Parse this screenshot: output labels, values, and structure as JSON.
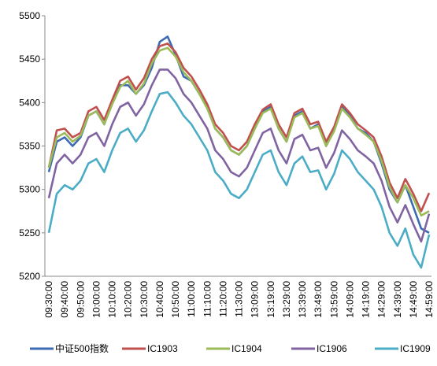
{
  "chart_data": {
    "type": "line",
    "categories": [
      "09:30:00",
      null,
      "09:40:00",
      null,
      "09:50:00",
      null,
      "10:00:00",
      null,
      "10:10:00",
      null,
      "10:20:00",
      null,
      "10:30:00",
      null,
      "10:40:00",
      null,
      "10:50:00",
      null,
      "11:00:00",
      null,
      "11:10:00",
      null,
      "11:20:00",
      null,
      "11:30:00",
      null,
      "13:09:00",
      null,
      "13:19:00",
      null,
      "13:29:00",
      null,
      "13:39:00",
      null,
      "13:49:00",
      null,
      "13:59:00",
      null,
      "14:09:00",
      null,
      "14:19:00",
      null,
      "14:29:00",
      null,
      "14:39:00",
      null,
      "14:49:00",
      null,
      "14:59:00"
    ],
    "series": [
      {
        "name": "中证500指数",
        "color": "#3d6bb3",
        "values": [
          5320,
          5355,
          5360,
          5350,
          5360,
          5385,
          5390,
          5375,
          5400,
          5420,
          5420,
          5410,
          5420,
          5440,
          5470,
          5476,
          5455,
          5430,
          5425,
          5410,
          5395,
          5370,
          5360,
          5345,
          5340,
          5350,
          5370,
          5390,
          5395,
          5370,
          5355,
          5385,
          5390,
          5370,
          5375,
          5350,
          5370,
          5395,
          5385,
          5370,
          5365,
          5355,
          5330,
          5300,
          5285,
          5305,
          5280,
          5255,
          5250
        ]
      },
      {
        "name": "IC1903",
        "color": "#c0504d",
        "values": [
          5325,
          5368,
          5370,
          5360,
          5365,
          5390,
          5395,
          5380,
          5403,
          5425,
          5430,
          5415,
          5428,
          5450,
          5465,
          5468,
          5458,
          5440,
          5430,
          5415,
          5398,
          5375,
          5365,
          5350,
          5345,
          5355,
          5375,
          5392,
          5398,
          5375,
          5360,
          5388,
          5393,
          5375,
          5378,
          5355,
          5372,
          5398,
          5388,
          5375,
          5368,
          5360,
          5338,
          5308,
          5290,
          5312,
          5295,
          5275,
          5296
        ]
      },
      {
        "name": "IC1904",
        "color": "#9bbb59",
        "values": [
          5325,
          5360,
          5365,
          5355,
          5362,
          5385,
          5390,
          5375,
          5398,
          5418,
          5425,
          5410,
          5422,
          5445,
          5460,
          5463,
          5453,
          5435,
          5425,
          5410,
          5393,
          5370,
          5360,
          5345,
          5340,
          5350,
          5370,
          5388,
          5393,
          5370,
          5355,
          5383,
          5388,
          5370,
          5373,
          5350,
          5367,
          5393,
          5383,
          5370,
          5363,
          5355,
          5333,
          5303,
          5285,
          5305,
          5290,
          5270,
          5275
        ]
      },
      {
        "name": "IC1906",
        "color": "#8064a2",
        "values": [
          5290,
          5330,
          5340,
          5330,
          5340,
          5360,
          5365,
          5350,
          5375,
          5395,
          5400,
          5385,
          5398,
          5420,
          5438,
          5438,
          5428,
          5410,
          5400,
          5385,
          5370,
          5345,
          5335,
          5320,
          5315,
          5325,
          5345,
          5365,
          5370,
          5345,
          5330,
          5358,
          5363,
          5345,
          5348,
          5325,
          5342,
          5368,
          5358,
          5345,
          5338,
          5330,
          5310,
          5280,
          5262,
          5282,
          5260,
          5240,
          5272
        ]
      },
      {
        "name": "IC1909",
        "color": "#4bacc6",
        "values": [
          5250,
          5295,
          5305,
          5300,
          5310,
          5330,
          5335,
          5320,
          5345,
          5365,
          5370,
          5355,
          5368,
          5390,
          5410,
          5412,
          5400,
          5385,
          5375,
          5360,
          5345,
          5320,
          5310,
          5295,
          5290,
          5300,
          5320,
          5340,
          5345,
          5320,
          5305,
          5330,
          5338,
          5320,
          5322,
          5300,
          5318,
          5345,
          5335,
          5320,
          5310,
          5300,
          5280,
          5250,
          5235,
          5255,
          5225,
          5210,
          5248
        ]
      }
    ],
    "ylim": [
      5200,
      5500
    ],
    "yticks": [
      5200,
      5250,
      5300,
      5350,
      5400,
      5450,
      5500
    ],
    "grid": false,
    "legend": "bottom"
  }
}
